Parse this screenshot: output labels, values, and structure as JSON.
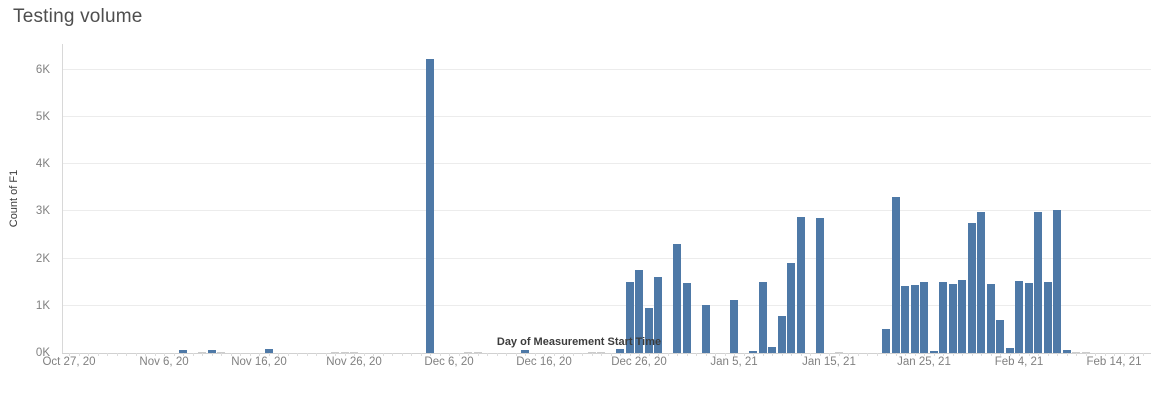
{
  "page": {
    "title": "Testing volume"
  },
  "chart_data": {
    "type": "bar",
    "title": "Testing volume",
    "xlabel": "Day of Measurement Start Time",
    "ylabel": "Count of F1",
    "grid": "horizontal-light",
    "legend": "none",
    "x_axis": {
      "start_date": "Oct 27, 20",
      "end_date": "Feb 14, 21",
      "tick_labels": [
        "Oct 27, 20",
        "Nov 6, 20",
        "Nov 16, 20",
        "Nov 26, 20",
        "Dec 6, 20",
        "Dec 16, 20",
        "Dec 26, 20",
        "Jan 5, 21",
        "Jan 15, 21",
        "Jan 25, 21",
        "Feb 4, 21",
        "Feb 14, 21"
      ],
      "tick_days": [
        0,
        10,
        20,
        30,
        40,
        50,
        60,
        70,
        80,
        90,
        100,
        110
      ],
      "minor_tick_every_days": 1
    },
    "y_axis": {
      "tick_labels": [
        "0K",
        "1K",
        "2K",
        "3K",
        "4K",
        "5K",
        "6K"
      ],
      "tick_values": [
        0,
        1000,
        2000,
        3000,
        4000,
        5000,
        6000
      ],
      "ylim": [
        0,
        6530
      ]
    },
    "colors": {
      "bar": "#4e79a7",
      "tiny_bar": "#cccccc",
      "gridline": "#ececec",
      "axis_line": "#d1d1d1",
      "tick_label": "#818181",
      "axis_title": "#3c3c3c",
      "chart_title": "#4e4e4e"
    },
    "tiny_bar_threshold": 30,
    "bars": [
      {
        "date": "Nov 8, 20",
        "day": 12,
        "value": 60
      },
      {
        "date": "Nov 10, 20",
        "day": 14,
        "value": 20
      },
      {
        "date": "Nov 11, 20",
        "day": 15,
        "value": 60
      },
      {
        "date": "Nov 12, 20",
        "day": 16,
        "value": 20
      },
      {
        "date": "Nov 17, 20",
        "day": 21,
        "value": 80
      },
      {
        "date": "Nov 24, 20",
        "day": 28,
        "value": 20
      },
      {
        "date": "Nov 25, 20",
        "day": 29,
        "value": 20
      },
      {
        "date": "Nov 26, 20",
        "day": 30,
        "value": 20
      },
      {
        "date": "Dec 4, 20",
        "day": 38,
        "value": 6230
      },
      {
        "date": "Dec 8, 20",
        "day": 42,
        "value": 20
      },
      {
        "date": "Dec 9, 20",
        "day": 43,
        "value": 20
      },
      {
        "date": "Dec 14, 20",
        "day": 48,
        "value": 70
      },
      {
        "date": "Dec 21, 20",
        "day": 55,
        "value": 20
      },
      {
        "date": "Dec 22, 20",
        "day": 56,
        "value": 20
      },
      {
        "date": "Dec 24, 20",
        "day": 58,
        "value": 80
      },
      {
        "date": "Dec 25, 20",
        "day": 59,
        "value": 1500
      },
      {
        "date": "Dec 26, 20",
        "day": 60,
        "value": 1760
      },
      {
        "date": "Dec 27, 20",
        "day": 61,
        "value": 950
      },
      {
        "date": "Dec 28, 20",
        "day": 62,
        "value": 1620
      },
      {
        "date": "Dec 30, 20",
        "day": 64,
        "value": 2300
      },
      {
        "date": "Dec 31, 20",
        "day": 65,
        "value": 1480
      },
      {
        "date": "Jan 2, 21",
        "day": 67,
        "value": 1020
      },
      {
        "date": "Jan 5, 21",
        "day": 70,
        "value": 1120
      },
      {
        "date": "Jan 7, 21",
        "day": 72,
        "value": 50
      },
      {
        "date": "Jan 8, 21",
        "day": 73,
        "value": 1500
      },
      {
        "date": "Jan 9, 21",
        "day": 74,
        "value": 130
      },
      {
        "date": "Jan 10, 21",
        "day": 75,
        "value": 780
      },
      {
        "date": "Jan 11, 21",
        "day": 76,
        "value": 1910
      },
      {
        "date": "Jan 12, 21",
        "day": 77,
        "value": 2890
      },
      {
        "date": "Jan 14, 21",
        "day": 79,
        "value": 2870
      },
      {
        "date": "Jan 16, 21",
        "day": 81,
        "value": 20
      },
      {
        "date": "Jan 21, 21",
        "day": 86,
        "value": 500
      },
      {
        "date": "Jan 22, 21",
        "day": 87,
        "value": 3300
      },
      {
        "date": "Jan 23, 21",
        "day": 88,
        "value": 1430
      },
      {
        "date": "Jan 24, 21",
        "day": 89,
        "value": 1440
      },
      {
        "date": "Jan 25, 21",
        "day": 90,
        "value": 1500
      },
      {
        "date": "Jan 26, 21",
        "day": 91,
        "value": 40
      },
      {
        "date": "Jan 27, 21",
        "day": 92,
        "value": 1500
      },
      {
        "date": "Jan 28, 21",
        "day": 93,
        "value": 1470
      },
      {
        "date": "Jan 29, 21",
        "day": 94,
        "value": 1550
      },
      {
        "date": "Jan 30, 21",
        "day": 95,
        "value": 2760
      },
      {
        "date": "Jan 31, 21",
        "day": 96,
        "value": 2980
      },
      {
        "date": "Feb 1, 21",
        "day": 97,
        "value": 1470
      },
      {
        "date": "Feb 2, 21",
        "day": 98,
        "value": 700
      },
      {
        "date": "Feb 3, 21",
        "day": 99,
        "value": 100
      },
      {
        "date": "Feb 4, 21",
        "day": 100,
        "value": 1520
      },
      {
        "date": "Feb 5, 21",
        "day": 101,
        "value": 1480
      },
      {
        "date": "Feb 6, 21",
        "day": 102,
        "value": 2980
      },
      {
        "date": "Feb 7, 21",
        "day": 103,
        "value": 1500
      },
      {
        "date": "Feb 8, 21",
        "day": 104,
        "value": 3020
      },
      {
        "date": "Feb 9, 21",
        "day": 105,
        "value": 60
      },
      {
        "date": "Feb 10, 21",
        "day": 106,
        "value": 20
      },
      {
        "date": "Feb 11, 21",
        "day": 107,
        "value": 20
      }
    ]
  }
}
